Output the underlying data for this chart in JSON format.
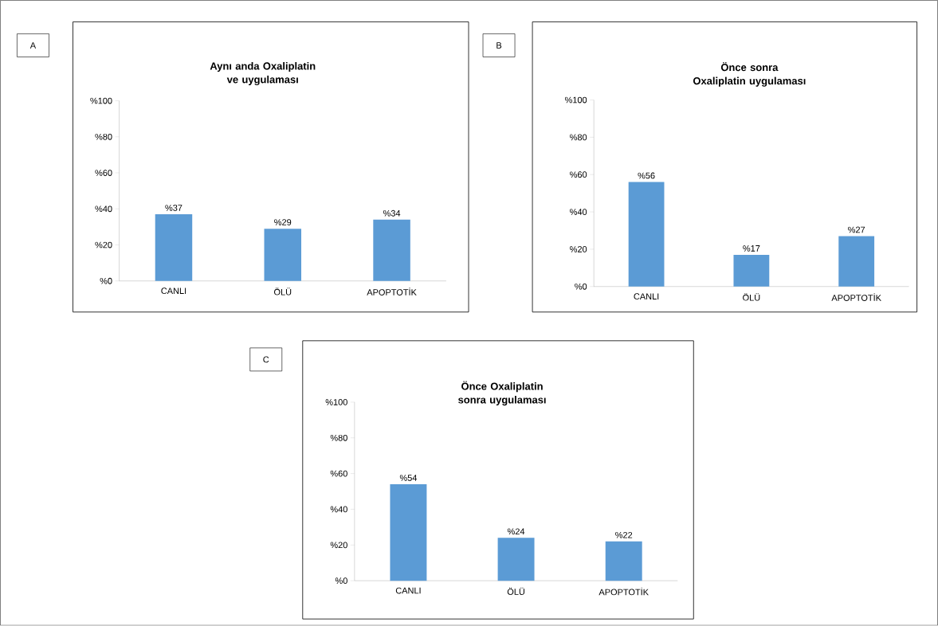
{
  "chart_data": [
    {
      "type": "bar",
      "title": "Aynı anda Oxaliplatin ve uygulaması",
      "annotations": [
        "A"
      ],
      "categories": [
        "CANLI",
        "ÖLÜ",
        "APOPTOTİK"
      ],
      "values": [
        37,
        29,
        34
      ],
      "value_labels": [
        "%37",
        "%29",
        "%34"
      ],
      "color": "#5b9bd5",
      "ylim": [
        0,
        100
      ],
      "yticks": [
        {
          "value": 0,
          "label": "%0"
        },
        {
          "value": 20,
          "label": "%20"
        },
        {
          "value": 40,
          "label": "%40"
        },
        {
          "value": 60,
          "label": "%60"
        },
        {
          "value": 80,
          "label": "%80"
        },
        {
          "value": 100,
          "label": "%100"
        }
      ]
    },
    {
      "type": "bar",
      "title": "Önce sonra Oxaliplatin uygulaması",
      "annotations": [
        "B"
      ],
      "categories": [
        "CANLI",
        "ÖLÜ",
        "APOPTOTİK"
      ],
      "values": [
        56,
        17,
        27
      ],
      "value_labels": [
        "%56",
        "%17",
        "%27"
      ],
      "color": "#5b9bd5",
      "ylim": [
        0,
        100
      ],
      "yticks": [
        {
          "value": 0,
          "label": "%0"
        },
        {
          "value": 20,
          "label": "%20"
        },
        {
          "value": 40,
          "label": "%40"
        },
        {
          "value": 60,
          "label": "%60"
        },
        {
          "value": 80,
          "label": "%80"
        },
        {
          "value": 100,
          "label": "%100"
        }
      ]
    },
    {
      "type": "bar",
      "title": "Önce Oxaliplatin sonra uygulaması",
      "annotations": [
        "C"
      ],
      "categories": [
        "CANLI",
        "ÖLÜ",
        "APOPTOTİK"
      ],
      "values": [
        54,
        24,
        22
      ],
      "value_labels": [
        "%54",
        "%24",
        "%22"
      ],
      "color": "#5b9bd5",
      "ylim": [
        0,
        100
      ],
      "yticks": [
        {
          "value": 0,
          "label": "%0"
        },
        {
          "value": 20,
          "label": "%20"
        },
        {
          "value": 40,
          "label": "%40"
        },
        {
          "value": 60,
          "label": "%60"
        },
        {
          "value": 80,
          "label": "%80"
        },
        {
          "value": 100,
          "label": "%100"
        }
      ]
    }
  ]
}
